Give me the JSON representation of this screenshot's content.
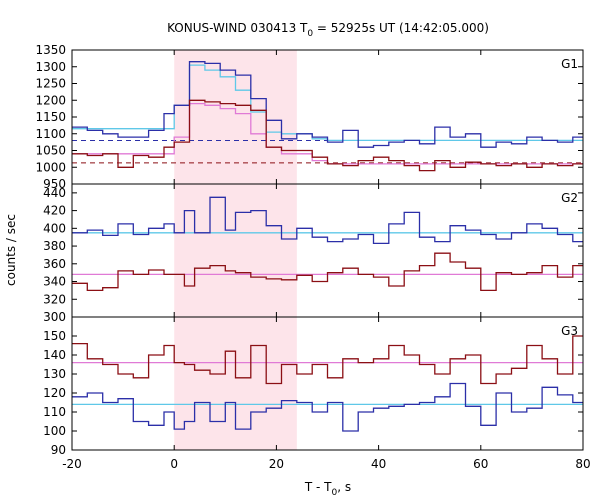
{
  "title_parts": {
    "prefix": "KONUS-WIND 030413 T",
    "sub": "0",
    "suffix": " = 52925s UT (14:42:05.000)"
  },
  "ylabel": "counts / sec",
  "xlabel_parts": {
    "prefix": "T - T",
    "sub": "0",
    "suffix": ", s"
  },
  "colors": {
    "blue": "#2b2fa8",
    "darkred": "#8b0f14",
    "lightblue": "#5fc8e8",
    "pink": "#e07ad6",
    "highlight": "#fde4ea"
  },
  "chart_data": {
    "type": "line",
    "step": true,
    "xlim": [
      -20,
      80
    ],
    "x_ticks": [
      -20,
      0,
      20,
      40,
      60,
      80
    ],
    "x_tick_labels": [
      "-20",
      "0",
      "20",
      "40",
      "60",
      "80"
    ],
    "highlight_interval": [
      0,
      24
    ],
    "bin_edges": [
      -20,
      -17,
      -14,
      -11,
      -8,
      -5,
      -2,
      0,
      2,
      4,
      7,
      10,
      12,
      15,
      18,
      21,
      24,
      27,
      30,
      33,
      36,
      39,
      42,
      45,
      48,
      51,
      54,
      57,
      60,
      63,
      66,
      69,
      72,
      75,
      78,
      80
    ],
    "panels": [
      {
        "label": "G1",
        "ylim": [
          950,
          1350
        ],
        "y_ticks": [
          950,
          1000,
          1050,
          1100,
          1150,
          1200,
          1250,
          1300,
          1350
        ],
        "y_tick_labels": [
          "950",
          "1000",
          "1050",
          "1100",
          "1150",
          "1200",
          "1250",
          "1300",
          "1350"
        ],
        "bin_edges": [
          -20,
          -17,
          -14,
          -11,
          -8,
          -5,
          -2,
          0,
          3,
          6,
          9,
          12,
          15,
          18,
          21,
          24,
          27,
          30,
          33,
          36,
          39,
          42,
          45,
          48,
          51,
          54,
          57,
          60,
          63,
          66,
          69,
          72,
          75,
          78,
          80
        ],
        "series": [
          {
            "color": "blue",
            "values": [
              1120,
              1110,
              1100,
              1090,
              1090,
              1110,
              1160,
              1185,
              1315,
              1310,
              1290,
              1275,
              1205,
              1140,
              1085,
              1100,
              1090,
              1075,
              1110,
              1060,
              1065,
              1075,
              1080,
              1070,
              1120,
              1090,
              1100,
              1060,
              1075,
              1070,
              1090,
              1080,
              1075,
              1090
            ]
          },
          {
            "color": "darkred",
            "values": [
              1040,
              1035,
              1040,
              1000,
              1035,
              1030,
              1060,
              1075,
              1200,
              1195,
              1190,
              1185,
              1170,
              1060,
              1050,
              1050,
              1030,
              1010,
              1005,
              1020,
              1030,
              1020,
              1005,
              990,
              1020,
              1000,
              1015,
              1010,
              1005,
              1010,
              1000,
              1010,
              1005,
              1010
            ]
          },
          {
            "color": "lightblue",
            "values": [
              1115,
              1115,
              1115,
              1115,
              1115,
              1115,
              1115,
              1185,
              1305,
              1290,
              1270,
              1230,
              1165,
              1105,
              1100,
              1100,
              1085,
              1080,
              1080,
              1080,
              1080,
              1080,
              1080,
              1080,
              1080,
              1080,
              1080,
              1080,
              1080,
              1080,
              1080,
              1080,
              1080,
              1080
            ]
          },
          {
            "color": "pink",
            "values": [
              1040,
              1040,
              1040,
              1040,
              1040,
              1040,
              1040,
              1090,
              1190,
              1185,
              1175,
              1160,
              1100,
              1060,
              1040,
              1040,
              1020,
              1010,
              1010,
              1010,
              1010,
              1010,
              1010,
              1010,
              1010,
              1010,
              1010,
              1010,
              1010,
              1010,
              1010,
              1010,
              1010,
              1010
            ]
          }
        ],
        "background_levels": [
          {
            "color": "blue",
            "value": 1080
          },
          {
            "color": "darkred",
            "value": 1013
          }
        ]
      },
      {
        "label": "G2",
        "ylim": [
          300,
          450
        ],
        "y_ticks": [
          300,
          320,
          340,
          360,
          380,
          400,
          420,
          440
        ],
        "y_tick_labels": [
          "300",
          "320",
          "340",
          "360",
          "380",
          "400",
          "420",
          "440"
        ],
        "series": [
          {
            "color": "blue",
            "values": [
              395,
              398,
              392,
              405,
              393,
              400,
              405,
              395,
              420,
              395,
              435,
              398,
              418,
              420,
              403,
              388,
              400,
              390,
              385,
              388,
              393,
              383,
              405,
              418,
              390,
              385,
              403,
              398,
              393,
              388,
              395,
              405,
              400,
              393,
              385
            ]
          },
          {
            "color": "darkred",
            "values": [
              338,
              330,
              333,
              352,
              348,
              353,
              348,
              348,
              335,
              355,
              358,
              352,
              350,
              345,
              343,
              342,
              347,
              340,
              350,
              355,
              348,
              345,
              335,
              352,
              358,
              372,
              362,
              355,
              330,
              350,
              348,
              350,
              358,
              345,
              358
            ]
          },
          {
            "color": "lightblue",
            "values": [
              395,
              395,
              395,
              395,
              395,
              395,
              395,
              395,
              395,
              395,
              395,
              395,
              395,
              395,
              395,
              395,
              395,
              395,
              395,
              395,
              395,
              395,
              395,
              395,
              395,
              395,
              395,
              395,
              395,
              395,
              395,
              395,
              395,
              395,
              395
            ]
          },
          {
            "color": "pink",
            "values": [
              348,
              348,
              348,
              348,
              348,
              348,
              348,
              348,
              348,
              348,
              348,
              348,
              348,
              348,
              348,
              348,
              348,
              348,
              348,
              348,
              348,
              348,
              348,
              348,
              348,
              348,
              348,
              348,
              348,
              348,
              348,
              348,
              348,
              348,
              348
            ]
          }
        ]
      },
      {
        "label": "G3",
        "ylim": [
          90,
          160
        ],
        "y_ticks": [
          90,
          100,
          110,
          120,
          130,
          140,
          150
        ],
        "y_tick_labels": [
          "90",
          "100",
          "110",
          "120",
          "130",
          "140",
          "150"
        ],
        "series": [
          {
            "color": "blue",
            "values": [
              118,
              120,
              115,
              117,
              105,
              103,
              110,
              101,
              105,
              115,
              105,
              115,
              101,
              110,
              112,
              116,
              115,
              110,
              115,
              100,
              110,
              112,
              113,
              114,
              115,
              118,
              125,
              113,
              103,
              120,
              110,
              112,
              123,
              119,
              115
            ]
          },
          {
            "color": "darkred",
            "values": [
              146,
              138,
              135,
              130,
              128,
              140,
              145,
              136,
              135,
              132,
              130,
              142,
              128,
              145,
              125,
              135,
              130,
              135,
              128,
              138,
              136,
              138,
              145,
              140,
              135,
              130,
              138,
              140,
              125,
              130,
              133,
              145,
              138,
              130,
              150
            ]
          },
          {
            "color": "lightblue",
            "values": [
              114,
              114,
              114,
              114,
              114,
              114,
              114,
              114,
              114,
              114,
              114,
              114,
              114,
              114,
              114,
              114,
              114,
              114,
              114,
              114,
              114,
              114,
              114,
              114,
              114,
              114,
              114,
              114,
              114,
              114,
              114,
              114,
              114,
              114,
              114
            ]
          },
          {
            "color": "pink",
            "values": [
              136,
              136,
              136,
              136,
              136,
              136,
              136,
              136,
              136,
              136,
              136,
              136,
              136,
              136,
              136,
              136,
              136,
              136,
              136,
              136,
              136,
              136,
              136,
              136,
              136,
              136,
              136,
              136,
              136,
              136,
              136,
              136,
              136,
              136,
              136
            ]
          }
        ]
      }
    ]
  }
}
